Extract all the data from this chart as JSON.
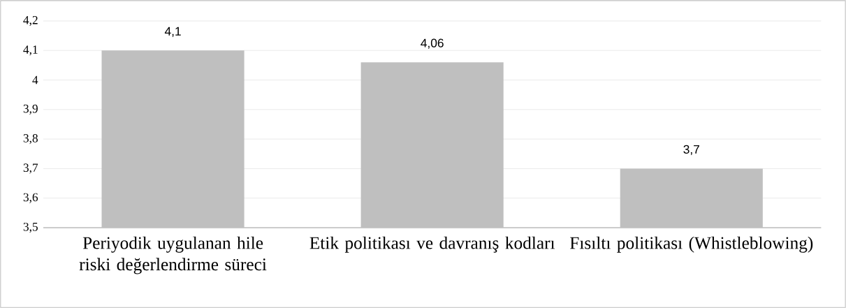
{
  "chart_data": {
    "type": "bar",
    "categories": [
      "Periyodik uygulanan hile riski değerlendirme süreci",
      "Etik politikası ve davranış kodları",
      "Fısıltı politikası (Whistleblowing)"
    ],
    "values": [
      4.1,
      4.06,
      3.7
    ],
    "value_labels": [
      "4,1",
      "4,06",
      "3,7"
    ],
    "color": "#bfbfbf",
    "ylim": [
      3.5,
      4.2
    ],
    "yticks": [
      {
        "value": 3.5,
        "label": "3,5"
      },
      {
        "value": 3.6,
        "label": "3,6"
      },
      {
        "value": 3.7,
        "label": "3,7"
      },
      {
        "value": 3.8,
        "label": "3,8"
      },
      {
        "value": 3.9,
        "label": "3,9"
      },
      4,
      {
        "value": 4.1,
        "label": "4,1"
      },
      {
        "value": 4.2,
        "label": "4,2"
      }
    ],
    "grid": "y"
  }
}
